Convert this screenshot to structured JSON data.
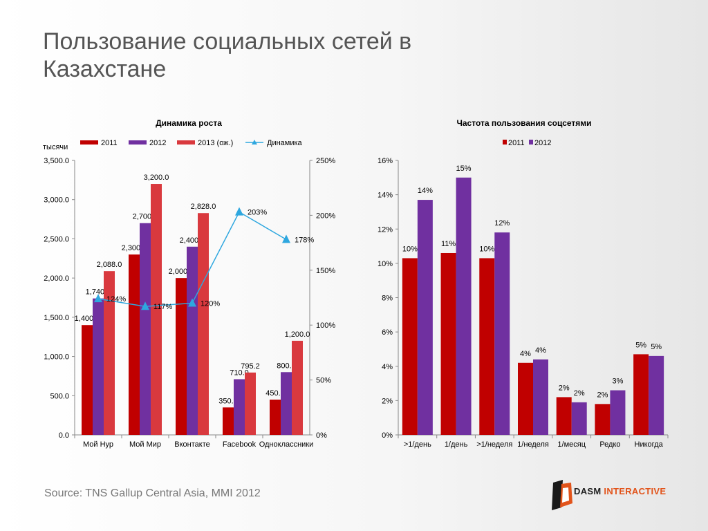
{
  "title": "Пользование социальных сетей в Казахстане",
  "source": "Source: TNS Gallup Central Asia, MMI 2012",
  "logo": {
    "word1": "DASM",
    "word2": "INTERACTIVE"
  },
  "colors": {
    "c2011": "#c00000",
    "c2012": "#7030a0",
    "c2013": "#d9393e",
    "line": "#2ea7df"
  },
  "chart_data": [
    {
      "type": "bar",
      "title": "Динамика роста",
      "ylabel": "тысячи",
      "ylim": [
        0,
        3500
      ],
      "y2lim": [
        0,
        250
      ],
      "yticks": [
        "0.0",
        "500.0",
        "1,000.0",
        "1,500.0",
        "2,000.0",
        "2,500.0",
        "3,000.0",
        "3,500.0"
      ],
      "y2ticks": [
        "0%",
        "50%",
        "100%",
        "150%",
        "200%",
        "250%"
      ],
      "categories": [
        "Мой Нур",
        "Мой Мир",
        "Вконтакте",
        "Facebook",
        "Одноклассники"
      ],
      "series": [
        {
          "name": "2011",
          "values": [
            1400,
            2300,
            2000,
            350,
            450
          ],
          "labels": [
            "1,400.0",
            "2,300.0",
            "2,000.0",
            "350.0",
            "450.0"
          ]
        },
        {
          "name": "2012",
          "values": [
            1740,
            2700,
            2400,
            710,
            800
          ],
          "labels": [
            "1,740.0",
            "2,700.0",
            "2,400.0",
            "710.0",
            "800.0"
          ]
        },
        {
          "name": "2013 (ож.)",
          "values": [
            2088,
            3200,
            2828,
            795.2,
            1200
          ],
          "labels": [
            "2,088.0",
            "3,200.0",
            "2,828.0",
            "795.2",
            "1,200.0"
          ]
        }
      ],
      "line": {
        "name": "Динамика",
        "axis": "secondary",
        "values": [
          124,
          117,
          120,
          203,
          178
        ],
        "labels": [
          "124%",
          "117%",
          "120%",
          "203%",
          "178%"
        ]
      },
      "legend": "top"
    },
    {
      "type": "bar",
      "title": "Частота пользования соцсетями",
      "ylim": [
        0,
        16
      ],
      "yticks": [
        "0%",
        "2%",
        "4%",
        "6%",
        "8%",
        "10%",
        "12%",
        "14%",
        "16%"
      ],
      "categories": [
        ">1/день",
        "1/день",
        ">1/неделя",
        "1/неделя",
        "1/месяц",
        "Редко",
        "Никогда"
      ],
      "series": [
        {
          "name": "2011",
          "values": [
            10.3,
            10.6,
            10.3,
            4.2,
            2.2,
            1.8,
            4.7
          ],
          "labels": [
            "10%",
            "11%",
            "10%",
            "4%",
            "2%",
            "2%",
            "5%"
          ]
        },
        {
          "name": "2012",
          "values": [
            13.7,
            15.0,
            11.8,
            4.4,
            1.9,
            2.6,
            4.6
          ],
          "labels": [
            "14%",
            "15%",
            "12%",
            "4%",
            "2%",
            "3%",
            "5%"
          ]
        }
      ],
      "legend": "top"
    }
  ]
}
